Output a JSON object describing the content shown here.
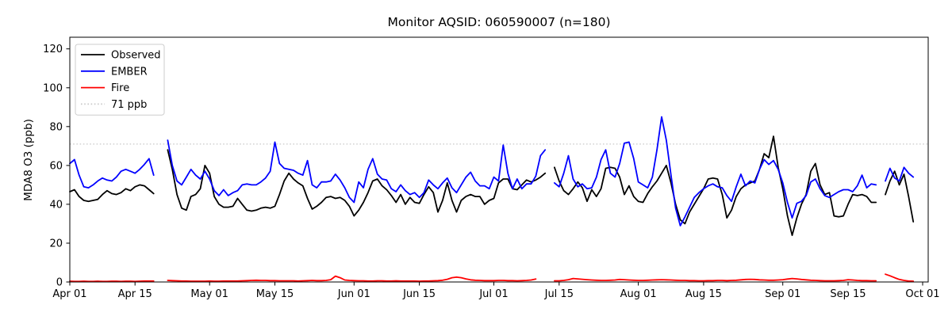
{
  "chart_data": {
    "type": "line",
    "title": "Monitor AQSID: 060590007 (n=180)",
    "ylabel": "MDA8 O3 (ppb)",
    "xlabel": "",
    "ylim": [
      0,
      126
    ],
    "yticks": [
      0,
      20,
      40,
      60,
      80,
      100,
      120
    ],
    "x_unit": "days since Apr 01",
    "x_domain_days": [
      0,
      184.2
    ],
    "xticks": [
      {
        "day": 0,
        "label": "Apr 01"
      },
      {
        "day": 14,
        "label": "Apr 15"
      },
      {
        "day": 30,
        "label": "May 01"
      },
      {
        "day": 44,
        "label": "May 15"
      },
      {
        "day": 61,
        "label": "Jun 01"
      },
      {
        "day": 75,
        "label": "Jun 15"
      },
      {
        "day": 91,
        "label": "Jul 01"
      },
      {
        "day": 105,
        "label": "Jul 15"
      },
      {
        "day": 122,
        "label": "Aug 01"
      },
      {
        "day": 136,
        "label": "Aug 15"
      },
      {
        "day": 153,
        "label": "Sep 01"
      },
      {
        "day": 167,
        "label": "Sep 15"
      },
      {
        "day": 183,
        "label": "Oct 01"
      }
    ],
    "grid": false,
    "legend_position": "upper-left",
    "threshold": {
      "label": "71 ppb",
      "value": 71,
      "color": "#c9c9c9",
      "style": "dotted"
    },
    "legend": [
      {
        "label": "Observed",
        "color": "#000000",
        "dashed": false
      },
      {
        "label": "EMBER",
        "color": "#0000ff",
        "dashed": false
      },
      {
        "label": "Fire",
        "color": "#ff0000",
        "dashed": false
      },
      {
        "label": "71 ppb",
        "color": "#c9c9c9",
        "dashed": true
      }
    ],
    "series": [
      {
        "name": "Observed",
        "color": "#000000",
        "values": [
          46.5,
          47.5,
          44,
          42,
          41.5,
          42,
          42.5,
          45,
          47,
          45.5,
          45,
          46,
          48,
          47,
          49,
          50,
          49.5,
          47.5,
          45.5,
          null,
          null,
          68,
          58,
          45,
          38,
          37,
          44,
          45,
          48,
          60,
          56,
          44,
          40,
          38.5,
          38.5,
          39,
          43,
          40,
          37,
          36.5,
          37,
          38,
          38.5,
          38,
          39,
          45,
          52,
          56,
          53,
          51,
          49.5,
          43,
          37.5,
          39,
          41,
          43.5,
          44,
          43,
          43.5,
          42,
          39,
          34,
          37,
          41,
          46,
          52,
          53,
          49.5,
          47.5,
          44.5,
          41,
          45,
          40,
          43.5,
          41,
          40.5,
          45,
          49,
          46,
          36,
          42,
          51,
          42,
          36,
          42,
          44,
          45,
          44,
          44,
          40,
          42,
          43,
          51,
          53,
          53,
          48,
          47.5,
          50,
          52.5,
          51.5,
          52.5,
          54,
          56,
          null,
          59,
          52,
          47,
          45,
          48,
          51.5,
          48.5,
          41.5,
          47.5,
          44,
          48,
          58.5,
          59,
          58.5,
          54,
          45,
          49.5,
          44,
          41.5,
          41,
          45.5,
          49,
          52,
          56,
          60,
          51,
          40,
          32,
          30,
          36,
          40,
          44,
          48,
          53,
          53.5,
          53,
          45,
          33,
          37,
          44,
          48,
          50,
          51,
          52,
          58,
          66,
          64,
          75,
          59,
          48,
          34,
          24,
          33,
          40,
          45,
          57,
          61,
          50,
          45,
          46,
          34,
          33.5,
          34,
          40,
          45,
          44.5,
          45,
          44,
          41,
          41,
          null,
          45,
          52,
          57,
          50,
          55.5,
          44,
          31
        ]
      },
      {
        "name": "EMBER",
        "color": "#0000ff",
        "values": [
          61,
          63,
          55,
          49,
          48.5,
          50,
          52,
          53.5,
          52.5,
          52,
          54,
          57,
          58,
          57,
          56,
          58,
          60.5,
          63.5,
          55,
          null,
          null,
          73,
          60,
          52,
          50,
          54,
          58,
          55,
          53,
          57,
          53,
          47,
          44.5,
          47.5,
          44.5,
          46,
          47,
          50,
          50.5,
          50,
          50,
          51.5,
          53.5,
          57,
          72,
          61,
          58.5,
          58,
          57.5,
          56,
          55,
          62.5,
          50,
          48.5,
          51.5,
          51.5,
          52,
          55.5,
          52.5,
          48.5,
          43.5,
          41,
          51.5,
          48.5,
          58,
          63.5,
          55.5,
          53,
          52.5,
          48,
          46.5,
          50,
          47,
          45,
          46,
          43.5,
          46,
          52.5,
          50,
          48,
          51,
          53.5,
          48.5,
          46,
          50,
          54,
          56.5,
          52,
          49.5,
          49.5,
          48,
          54,
          52,
          70.5,
          56,
          48,
          53,
          48,
          50.5,
          50.5,
          54.5,
          65,
          68,
          null,
          51,
          49,
          56,
          65,
          53,
          49,
          50.5,
          48,
          48.5,
          54,
          63,
          68,
          56,
          54,
          61,
          71.5,
          72,
          63.5,
          51.5,
          50,
          48.5,
          54,
          68,
          85,
          73,
          55,
          38,
          29,
          33.5,
          38.5,
          43.5,
          46,
          48,
          49.5,
          50.5,
          49,
          48.5,
          44.5,
          41.5,
          49,
          55.5,
          49.5,
          52,
          51,
          58,
          63,
          60.5,
          62.5,
          58,
          51,
          41,
          33,
          40.5,
          41.5,
          44.5,
          51.5,
          53,
          48,
          44.5,
          43.5,
          45,
          46.5,
          47.5,
          47.5,
          46.5,
          49.5,
          55,
          48.5,
          50.5,
          50,
          null,
          52,
          58.5,
          53.5,
          52,
          59,
          56,
          54
        ]
      },
      {
        "name": "Fire",
        "color": "#ff0000",
        "values": [
          0.4,
          0.3,
          0.3,
          0.4,
          0.3,
          0.3,
          0.4,
          0.3,
          0.3,
          0.4,
          0.4,
          0.3,
          0.4,
          0.4,
          0.3,
          0.4,
          0.5,
          0.5,
          0.5,
          null,
          null,
          0.8,
          0.7,
          0.6,
          0.5,
          0.5,
          0.4,
          0.4,
          0.4,
          0.4,
          0.5,
          0.4,
          0.4,
          0.5,
          0.5,
          0.5,
          0.5,
          0.6,
          0.7,
          0.8,
          0.9,
          0.8,
          0.8,
          0.7,
          0.7,
          0.6,
          0.6,
          0.6,
          0.6,
          0.5,
          0.6,
          0.7,
          0.8,
          0.7,
          0.7,
          0.8,
          1.2,
          3.0,
          2.2,
          1.0,
          0.8,
          0.7,
          0.6,
          0.6,
          0.5,
          0.5,
          0.6,
          0.6,
          0.5,
          0.5,
          0.6,
          0.5,
          0.5,
          0.5,
          0.5,
          0.4,
          0.5,
          0.5,
          0.6,
          0.7,
          0.9,
          1.4,
          2.2,
          2.5,
          2.2,
          1.6,
          1.1,
          0.9,
          0.8,
          0.7,
          0.7,
          0.7,
          0.8,
          0.8,
          0.7,
          0.7,
          0.6,
          0.7,
          0.8,
          1.0,
          1.5,
          null,
          null,
          null,
          0.6,
          0.6,
          0.8,
          1.2,
          1.8,
          1.6,
          1.4,
          1.2,
          1.0,
          0.9,
          0.8,
          0.8,
          0.9,
          1.0,
          1.3,
          1.2,
          1.0,
          0.9,
          0.8,
          0.8,
          0.9,
          1.0,
          1.1,
          1.2,
          1.1,
          1.0,
          0.9,
          0.8,
          0.8,
          0.7,
          0.7,
          0.6,
          0.6,
          0.7,
          0.7,
          0.8,
          0.8,
          0.7,
          0.8,
          0.9,
          1.1,
          1.3,
          1.4,
          1.3,
          1.1,
          1.0,
          0.9,
          0.9,
          1.0,
          1.2,
          1.5,
          1.8,
          1.6,
          1.3,
          1.1,
          0.9,
          0.8,
          0.7,
          0.6,
          0.6,
          0.6,
          0.7,
          0.8,
          1.2,
          1.0,
          0.8,
          0.7,
          0.7,
          0.6,
          0.6,
          null,
          4.0,
          3.2,
          2.2,
          1.3,
          0.8,
          0.5,
          0.4
        ]
      }
    ]
  }
}
